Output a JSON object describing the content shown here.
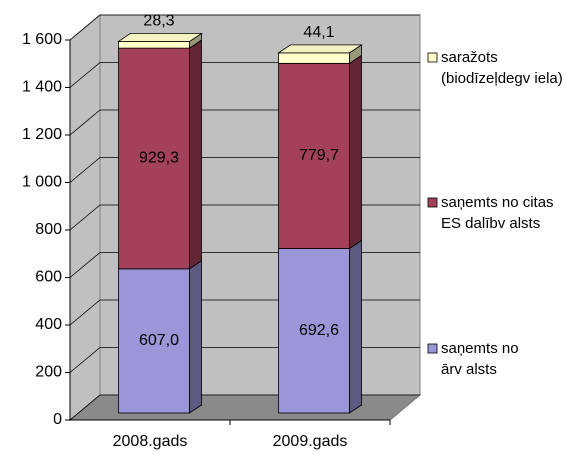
{
  "chart_data": {
    "type": "bar3d_stacked",
    "categories": [
      "2008.gads",
      "2009.gads"
    ],
    "series": [
      {
        "name": "saņemts no\nārv alsts",
        "color": "#9b96d8",
        "values": [
          607.0,
          692.6
        ],
        "value_labels": [
          "607,0",
          "692,6"
        ]
      },
      {
        "name": "saņemts no citas\nES dalībv alsts",
        "color": "#a3405a",
        "values": [
          929.3,
          779.7
        ],
        "value_labels": [
          "929,3",
          "779,7"
        ]
      },
      {
        "name": "saražots\n(biodīzeļdegv iela)",
        "color": "#ffffcc",
        "values": [
          28.3,
          44.1
        ],
        "value_labels": [
          "28,3",
          "44,1"
        ]
      }
    ],
    "ylim": [
      0,
      1600
    ],
    "yticks": [
      0,
      200,
      400,
      600,
      800,
      {
        "value": 1000,
        "label": "1 000"
      },
      {
        "value": 1200,
        "label": "1 200"
      },
      {
        "value": 1400,
        "label": "1 400"
      },
      {
        "value": 1600,
        "label": "1 600"
      }
    ],
    "grid": true,
    "legend": "right"
  }
}
